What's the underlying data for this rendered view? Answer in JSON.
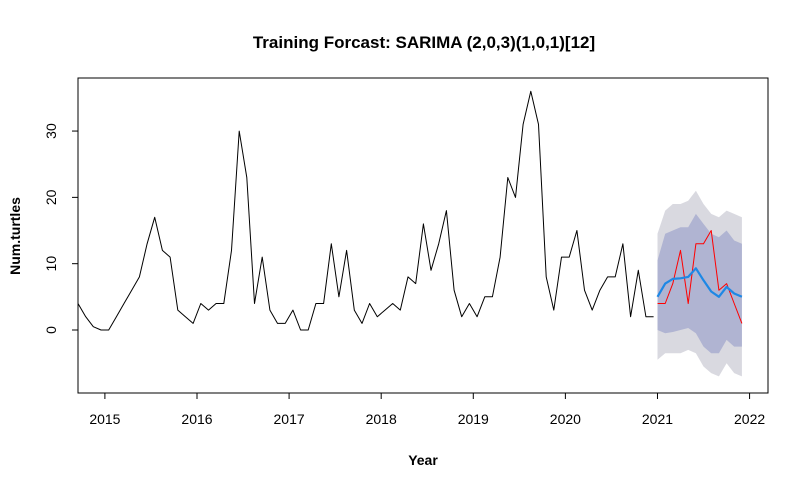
{
  "chart_data": {
    "type": "line",
    "title": "Training Forcast: SARIMA (2,0,3)(1,0,1)[12]",
    "xlabel": "Year",
    "ylabel": "Num.turtles",
    "xlim": [
      2014.708,
      2022.2
    ],
    "ylim": [
      -9.5,
      38
    ],
    "x_ticks": [
      2015,
      2016,
      2017,
      2018,
      2019,
      2020,
      2021,
      2022
    ],
    "y_ticks": [
      0,
      10,
      20,
      30
    ],
    "grid": false,
    "legend": "none",
    "start": 2014.708,
    "frequency": 12,
    "series": [
      {
        "color": "#000000",
        "values": [
          4,
          2,
          0.5,
          0,
          0,
          2,
          4,
          6,
          8,
          13,
          17,
          12,
          11,
          3,
          2,
          1,
          4,
          3,
          4,
          4,
          12,
          30,
          23,
          4,
          11,
          3,
          1,
          1,
          3,
          0,
          0,
          4,
          4,
          13,
          5,
          12,
          3,
          1,
          4,
          2,
          3,
          4,
          3,
          8,
          7,
          16,
          9,
          13,
          18,
          6,
          2,
          4,
          2,
          5,
          5,
          11,
          23,
          20,
          31,
          36,
          31,
          8,
          3,
          11,
          11,
          15,
          6,
          3,
          6,
          8,
          8,
          13,
          2,
          9,
          2,
          2
        ]
      },
      {
        "color": "#ff0000",
        "values": [
          4,
          4,
          7,
          12,
          4,
          13,
          13,
          15,
          6,
          7,
          4,
          1
        ]
      },
      {
        "color": "#1e88e5",
        "values": [
          5,
          7,
          7.7,
          7.8,
          8,
          9.3,
          7.5,
          5.8,
          5,
          6.5,
          5.5,
          5
        ]
      }
    ],
    "forecast_start": 2021.0,
    "forecast_band_80": {
      "color": "#b0b4d2",
      "lower": [
        0,
        -0.5,
        -0.3,
        0,
        0.3,
        -0.5,
        -2.5,
        -3.5,
        -3.5,
        -1.5,
        -2.5,
        -2.5
      ],
      "upper": [
        10.5,
        14.5,
        15,
        15.5,
        15.5,
        17.5,
        16,
        14.5,
        14,
        15,
        13.5,
        13
      ]
    },
    "forecast_band_95": {
      "color": "#d9d9e0",
      "lower": [
        -4.5,
        -3.5,
        -3.5,
        -3.5,
        -3,
        -3.5,
        -5.5,
        -6.5,
        -7,
        -5,
        -6.5,
        -7
      ],
      "upper": [
        14.5,
        18,
        19,
        19,
        19.5,
        21,
        19,
        17.5,
        17,
        18,
        17.5,
        17
      ]
    }
  }
}
